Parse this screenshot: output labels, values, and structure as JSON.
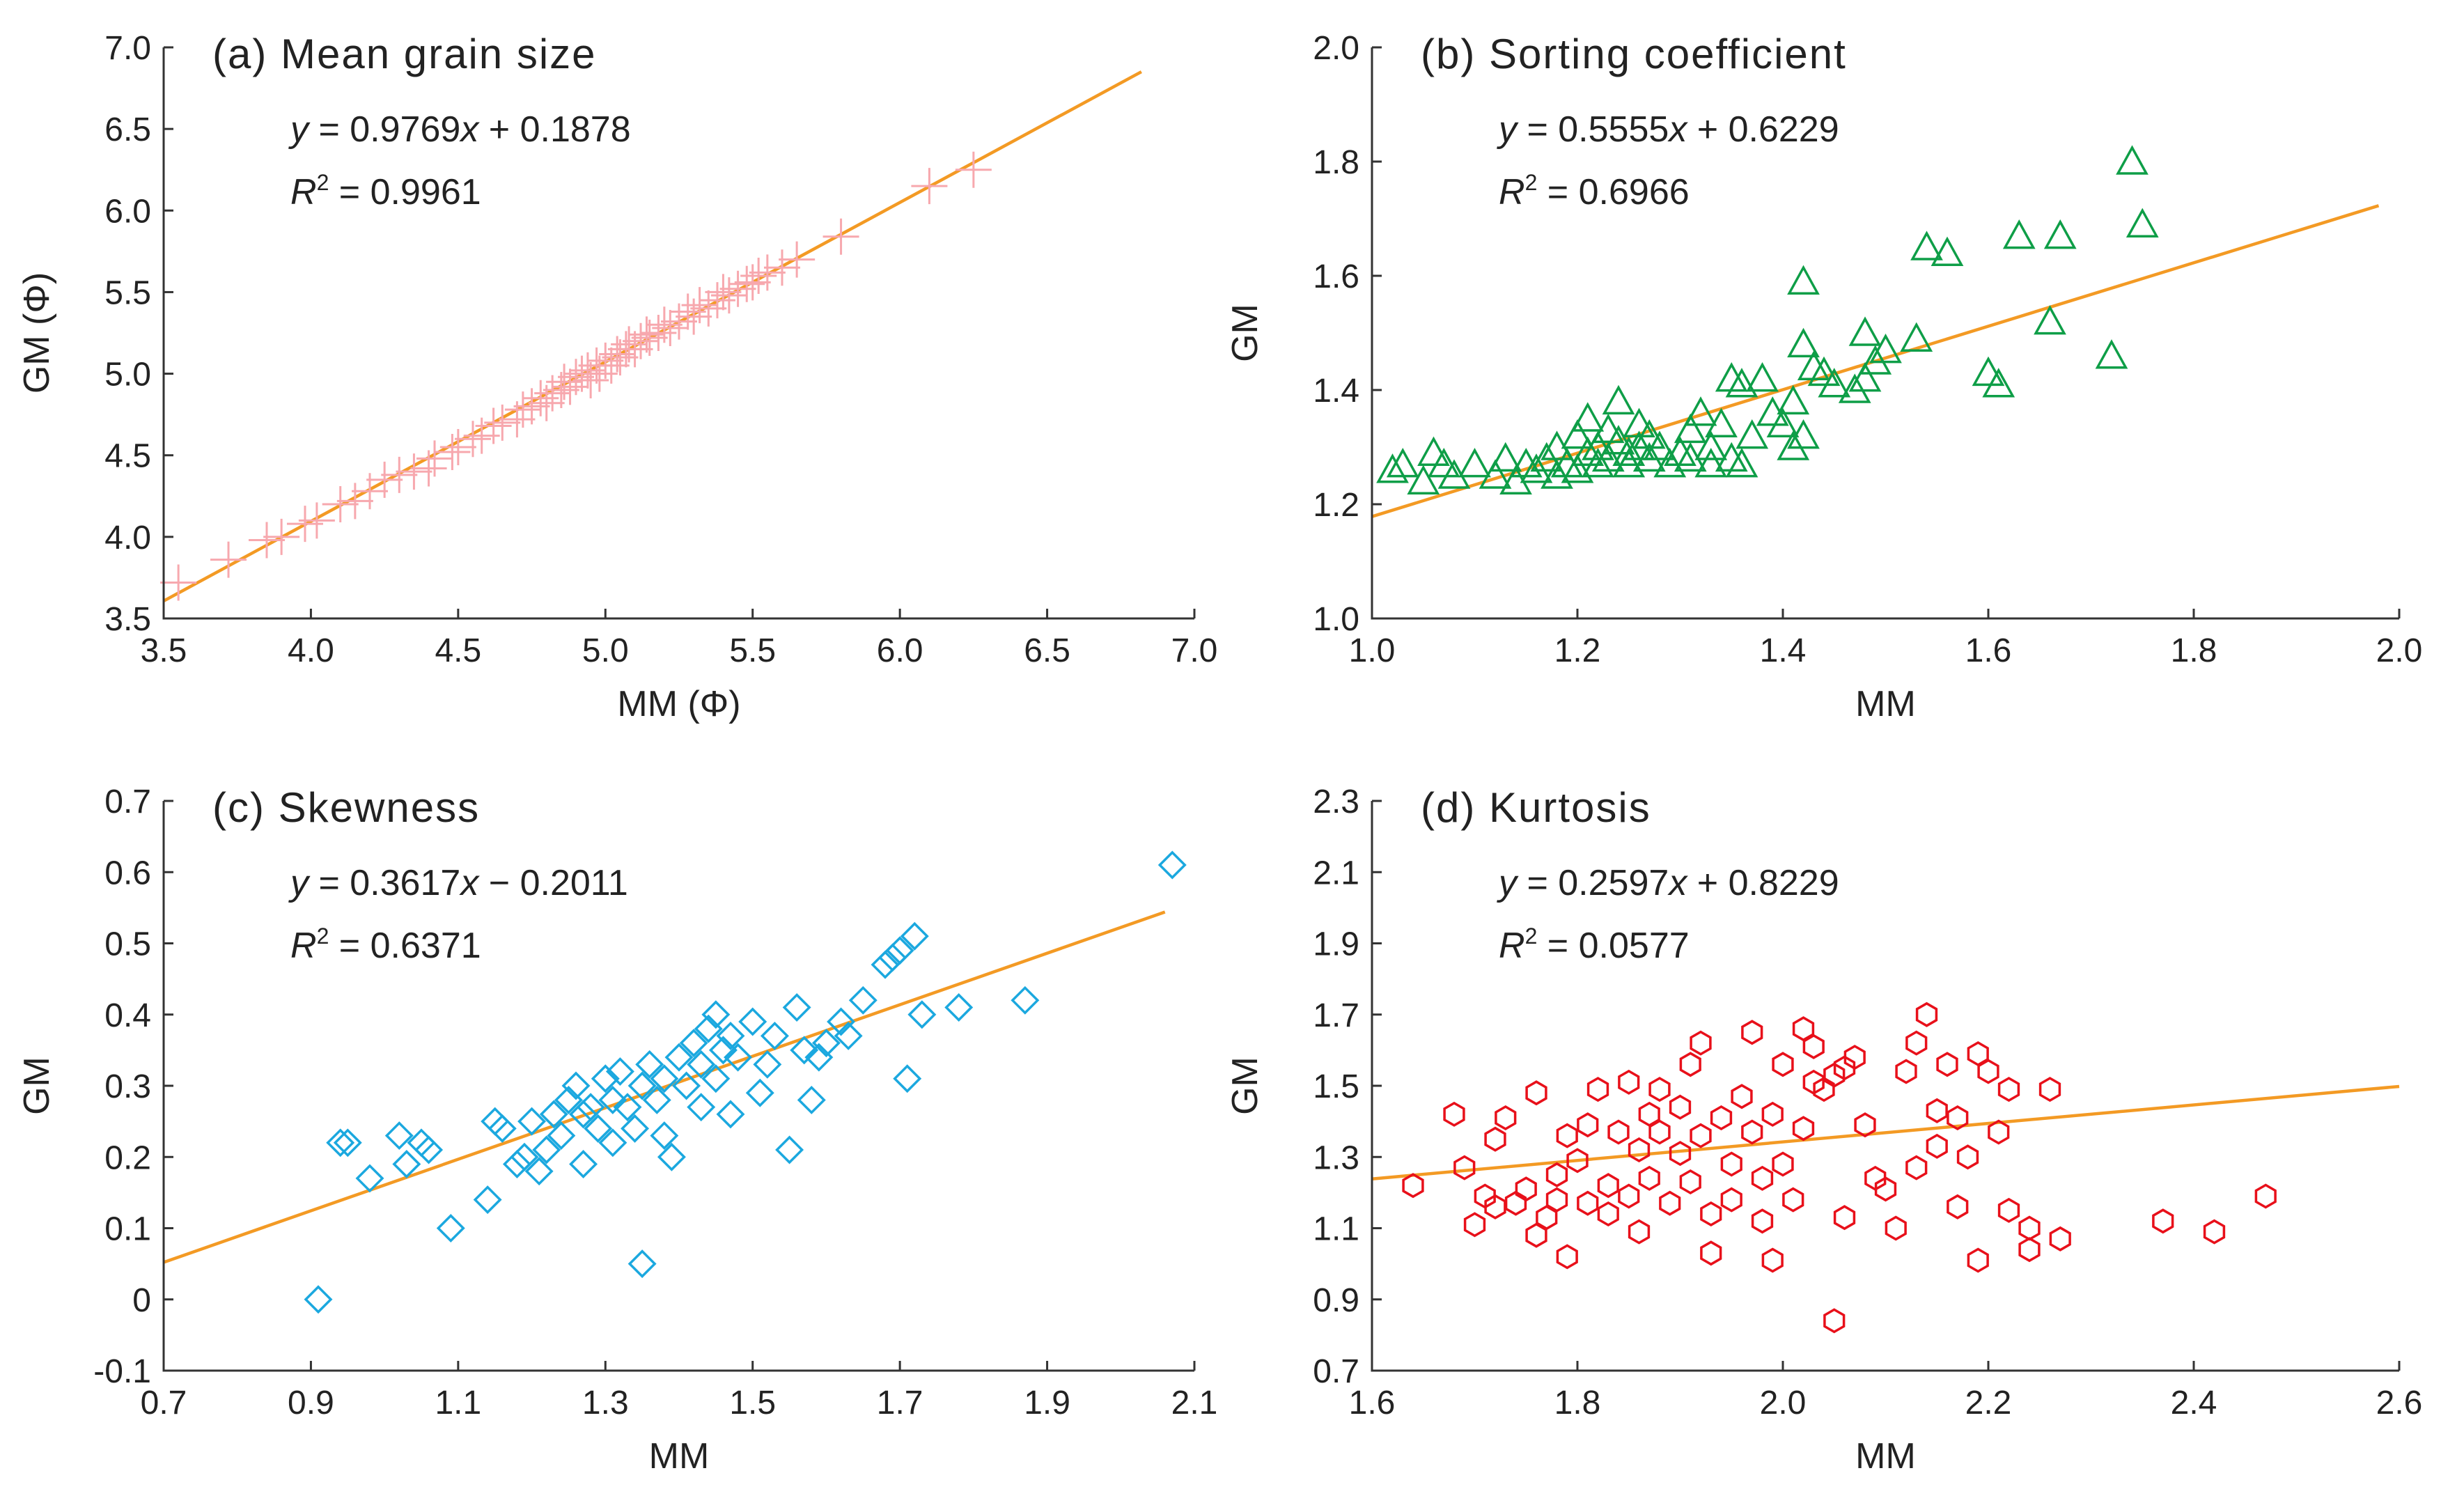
{
  "figure": {
    "panels": [
      "a",
      "b",
      "c",
      "d"
    ]
  },
  "chart_data": [
    {
      "id": "a",
      "type": "scatter",
      "title": "(a) Mean grain size",
      "xlabel": "MM (Φ)",
      "ylabel": "GM (Φ)",
      "xlim": [
        3.5,
        7.0
      ],
      "ylim": [
        3.5,
        7.0
      ],
      "xticks": [
        3.5,
        4.0,
        4.5,
        5.0,
        5.5,
        6.0,
        6.5,
        7.0
      ],
      "yticks": [
        3.5,
        4.0,
        4.5,
        5.0,
        5.5,
        6.0,
        6.5,
        7.0
      ],
      "tick_decimals": 1,
      "marker": "plus",
      "marker_color": "#F7A8AE",
      "equation": {
        "y": "y",
        "eq": " = ",
        "coef": "0.9769",
        "x": "x",
        "rest": " + 0.1878"
      },
      "r2": {
        "r": "R",
        "sup": "2",
        "rest": " = 0.9961"
      },
      "fit": {
        "slope": 0.9769,
        "intercept": 0.1878,
        "x_range": [
          3.5,
          6.82
        ],
        "color": "#F39A24"
      },
      "points": [
        [
          3.55,
          3.72
        ],
        [
          3.72,
          3.86
        ],
        [
          3.85,
          3.98
        ],
        [
          3.9,
          4.0
        ],
        [
          3.98,
          4.08
        ],
        [
          4.02,
          4.1
        ],
        [
          4.1,
          4.2
        ],
        [
          4.15,
          4.22
        ],
        [
          4.2,
          4.28
        ],
        [
          4.25,
          4.35
        ],
        [
          4.3,
          4.38
        ],
        [
          4.35,
          4.4
        ],
        [
          4.4,
          4.42
        ],
        [
          4.42,
          4.48
        ],
        [
          4.48,
          4.52
        ],
        [
          4.5,
          4.55
        ],
        [
          4.55,
          4.6
        ],
        [
          4.58,
          4.62
        ],
        [
          4.62,
          4.68
        ],
        [
          4.65,
          4.7
        ],
        [
          4.7,
          4.72
        ],
        [
          4.72,
          4.78
        ],
        [
          4.75,
          4.8
        ],
        [
          4.78,
          4.85
        ],
        [
          4.8,
          4.82
        ],
        [
          4.82,
          4.88
        ],
        [
          4.85,
          4.9
        ],
        [
          4.86,
          4.95
        ],
        [
          4.88,
          4.92
        ],
        [
          4.9,
          4.98
        ],
        [
          4.92,
          5.0
        ],
        [
          4.94,
          5.02
        ],
        [
          4.95,
          4.96
        ],
        [
          4.97,
          5.05
        ],
        [
          4.98,
          5.0
        ],
        [
          5.0,
          5.08
        ],
        [
          5.02,
          5.05
        ],
        [
          5.04,
          5.12
        ],
        [
          5.05,
          5.1
        ],
        [
          5.07,
          5.15
        ],
        [
          5.08,
          5.18
        ],
        [
          5.1,
          5.15
        ],
        [
          5.12,
          5.2
        ],
        [
          5.14,
          5.24
        ],
        [
          5.15,
          5.22
        ],
        [
          5.18,
          5.25
        ],
        [
          5.2,
          5.3
        ],
        [
          5.22,
          5.28
        ],
        [
          5.25,
          5.32
        ],
        [
          5.28,
          5.38
        ],
        [
          5.3,
          5.35
        ],
        [
          5.32,
          5.42
        ],
        [
          5.35,
          5.4
        ],
        [
          5.38,
          5.45
        ],
        [
          5.4,
          5.5
        ],
        [
          5.42,
          5.48
        ],
        [
          5.45,
          5.52
        ],
        [
          5.48,
          5.55
        ],
        [
          5.5,
          5.56
        ],
        [
          5.52,
          5.6
        ],
        [
          5.55,
          5.62
        ],
        [
          5.6,
          5.65
        ],
        [
          5.65,
          5.7
        ],
        [
          5.8,
          5.84
        ],
        [
          6.1,
          6.15
        ],
        [
          6.25,
          6.25
        ]
      ]
    },
    {
      "id": "b",
      "type": "scatter",
      "title": "(b) Sorting coefficient",
      "xlabel": "MM",
      "ylabel": "GM",
      "xlim": [
        1.0,
        2.0
      ],
      "ylim": [
        1.0,
        2.0
      ],
      "xticks": [
        1.0,
        1.2,
        1.4,
        1.6,
        1.8,
        2.0
      ],
      "yticks": [
        1.0,
        1.2,
        1.4,
        1.6,
        1.8,
        2.0
      ],
      "tick_decimals": 1,
      "marker": "triangle",
      "marker_color": "#0E9E47",
      "equation": {
        "y": "y",
        "eq": " = ",
        "coef": "0.5555",
        "x": "x",
        "rest": " + 0.6229"
      },
      "r2": {
        "r": "R",
        "sup": "2",
        "rest": " = 0.6966"
      },
      "fit": {
        "slope": 0.5555,
        "intercept": 0.6229,
        "x_range": [
          1.0,
          1.98
        ],
        "color": "#F39A24"
      },
      "points": [
        [
          1.02,
          1.26
        ],
        [
          1.03,
          1.27
        ],
        [
          1.05,
          1.24
        ],
        [
          1.06,
          1.29
        ],
        [
          1.07,
          1.27
        ],
        [
          1.08,
          1.25
        ],
        [
          1.1,
          1.27
        ],
        [
          1.12,
          1.25
        ],
        [
          1.13,
          1.28
        ],
        [
          1.14,
          1.24
        ],
        [
          1.15,
          1.27
        ],
        [
          1.16,
          1.26
        ],
        [
          1.17,
          1.28
        ],
        [
          1.18,
          1.3
        ],
        [
          1.18,
          1.25
        ],
        [
          1.19,
          1.27
        ],
        [
          1.2,
          1.32
        ],
        [
          1.2,
          1.26
        ],
        [
          1.21,
          1.29
        ],
        [
          1.21,
          1.35
        ],
        [
          1.22,
          1.3
        ],
        [
          1.22,
          1.27
        ],
        [
          1.23,
          1.33
        ],
        [
          1.23,
          1.28
        ],
        [
          1.24,
          1.38
        ],
        [
          1.24,
          1.31
        ],
        [
          1.25,
          1.29
        ],
        [
          1.25,
          1.27
        ],
        [
          1.26,
          1.34
        ],
        [
          1.26,
          1.3
        ],
        [
          1.27,
          1.28
        ],
        [
          1.27,
          1.32
        ],
        [
          1.28,
          1.3
        ],
        [
          1.29,
          1.27
        ],
        [
          1.3,
          1.29
        ],
        [
          1.31,
          1.33
        ],
        [
          1.31,
          1.28
        ],
        [
          1.32,
          1.36
        ],
        [
          1.33,
          1.3
        ],
        [
          1.33,
          1.27
        ],
        [
          1.34,
          1.34
        ],
        [
          1.35,
          1.42
        ],
        [
          1.35,
          1.28
        ],
        [
          1.36,
          1.41
        ],
        [
          1.36,
          1.27
        ],
        [
          1.37,
          1.32
        ],
        [
          1.38,
          1.42
        ],
        [
          1.39,
          1.36
        ],
        [
          1.4,
          1.34
        ],
        [
          1.41,
          1.38
        ],
        [
          1.41,
          1.3
        ],
        [
          1.42,
          1.48
        ],
        [
          1.42,
          1.32
        ],
        [
          1.42,
          1.59
        ],
        [
          1.43,
          1.44
        ],
        [
          1.44,
          1.43
        ],
        [
          1.45,
          1.41
        ],
        [
          1.47,
          1.4
        ],
        [
          1.48,
          1.5
        ],
        [
          1.48,
          1.42
        ],
        [
          1.49,
          1.45
        ],
        [
          1.5,
          1.47
        ],
        [
          1.53,
          1.49
        ],
        [
          1.54,
          1.65
        ],
        [
          1.56,
          1.64
        ],
        [
          1.6,
          1.43
        ],
        [
          1.61,
          1.41
        ],
        [
          1.63,
          1.67
        ],
        [
          1.66,
          1.52
        ],
        [
          1.67,
          1.67
        ],
        [
          1.72,
          1.46
        ],
        [
          1.74,
          1.8
        ],
        [
          1.75,
          1.69
        ]
      ]
    },
    {
      "id": "c",
      "type": "scatter",
      "title": "(c) Skewness",
      "xlabel": "MM",
      "ylabel": "GM",
      "xlim": [
        0.7,
        2.1
      ],
      "ylim": [
        -0.1,
        0.7
      ],
      "xticks": [
        0.7,
        0.9,
        1.1,
        1.3,
        1.5,
        1.7,
        1.9,
        2.1
      ],
      "yticks": [
        -0.1,
        0,
        0.1,
        0.2,
        0.3,
        0.4,
        0.5,
        0.6,
        0.7
      ],
      "tick_decimals": 1,
      "marker": "diamond",
      "marker_color": "#1BA8DF",
      "equation": {
        "y": "y",
        "eq": " = ",
        "coef": "0.3617",
        "x": "x",
        "rest": " − 0.2011"
      },
      "r2": {
        "r": "R",
        "sup": "2",
        "rest": " = 0.6371"
      },
      "fit": {
        "slope": 0.3617,
        "intercept": -0.2011,
        "x_range": [
          0.7,
          2.06
        ],
        "color": "#F39A24"
      },
      "points": [
        [
          0.91,
          0.0
        ],
        [
          0.94,
          0.22
        ],
        [
          0.95,
          0.22
        ],
        [
          0.98,
          0.17
        ],
        [
          1.02,
          0.23
        ],
        [
          1.03,
          0.19
        ],
        [
          1.05,
          0.22
        ],
        [
          1.06,
          0.21
        ],
        [
          1.09,
          0.1
        ],
        [
          1.14,
          0.14
        ],
        [
          1.15,
          0.25
        ],
        [
          1.16,
          0.24
        ],
        [
          1.18,
          0.19
        ],
        [
          1.19,
          0.2
        ],
        [
          1.2,
          0.25
        ],
        [
          1.21,
          0.18
        ],
        [
          1.22,
          0.21
        ],
        [
          1.23,
          0.26
        ],
        [
          1.24,
          0.23
        ],
        [
          1.25,
          0.28
        ],
        [
          1.26,
          0.3
        ],
        [
          1.27,
          0.19
        ],
        [
          1.27,
          0.26
        ],
        [
          1.28,
          0.27
        ],
        [
          1.29,
          0.24
        ],
        [
          1.3,
          0.31
        ],
        [
          1.31,
          0.22
        ],
        [
          1.31,
          0.28
        ],
        [
          1.32,
          0.32
        ],
        [
          1.33,
          0.27
        ],
        [
          1.34,
          0.24
        ],
        [
          1.35,
          0.05
        ],
        [
          1.35,
          0.3
        ],
        [
          1.36,
          0.33
        ],
        [
          1.37,
          0.28
        ],
        [
          1.38,
          0.23
        ],
        [
          1.38,
          0.31
        ],
        [
          1.39,
          0.2
        ],
        [
          1.4,
          0.34
        ],
        [
          1.41,
          0.3
        ],
        [
          1.42,
          0.36
        ],
        [
          1.43,
          0.27
        ],
        [
          1.43,
          0.33
        ],
        [
          1.44,
          0.38
        ],
        [
          1.45,
          0.31
        ],
        [
          1.45,
          0.4
        ],
        [
          1.46,
          0.35
        ],
        [
          1.47,
          0.26
        ],
        [
          1.47,
          0.37
        ],
        [
          1.48,
          0.34
        ],
        [
          1.5,
          0.39
        ],
        [
          1.51,
          0.29
        ],
        [
          1.52,
          0.33
        ],
        [
          1.53,
          0.37
        ],
        [
          1.55,
          0.21
        ],
        [
          1.56,
          0.41
        ],
        [
          1.57,
          0.35
        ],
        [
          1.58,
          0.28
        ],
        [
          1.59,
          0.34
        ],
        [
          1.6,
          0.36
        ],
        [
          1.62,
          0.39
        ],
        [
          1.63,
          0.37
        ],
        [
          1.65,
          0.42
        ],
        [
          1.68,
          0.47
        ],
        [
          1.69,
          0.48
        ],
        [
          1.7,
          0.49
        ],
        [
          1.71,
          0.31
        ],
        [
          1.72,
          0.51
        ],
        [
          1.73,
          0.4
        ],
        [
          1.78,
          0.41
        ],
        [
          1.87,
          0.42
        ],
        [
          2.07,
          0.61
        ]
      ]
    },
    {
      "id": "d",
      "type": "scatter",
      "title": "(d) Kurtosis",
      "xlabel": "MM",
      "ylabel": "GM",
      "xlim": [
        1.6,
        2.6
      ],
      "ylim": [
        0.7,
        2.3
      ],
      "xticks": [
        1.6,
        1.8,
        2.0,
        2.2,
        2.4,
        2.6
      ],
      "yticks": [
        0.7,
        0.9,
        1.1,
        1.3,
        1.5,
        1.7,
        1.9,
        2.1,
        2.3
      ],
      "tick_decimals": 1,
      "marker": "hexagon",
      "marker_color": "#E8101A",
      "equation": {
        "y": "y",
        "eq": " = ",
        "coef": "0.2597",
        "x": "x",
        "rest": " + 0.8229"
      },
      "r2": {
        "r": "R",
        "sup": "2",
        "rest": " = 0.0577"
      },
      "fit": {
        "slope": 0.2597,
        "intercept": 0.8229,
        "x_range": [
          1.6,
          2.6
        ],
        "color": "#F39A24"
      },
      "points": [
        [
          1.64,
          1.22
        ],
        [
          1.68,
          1.42
        ],
        [
          1.69,
          1.27
        ],
        [
          1.7,
          1.11
        ],
        [
          1.71,
          1.19
        ],
        [
          1.72,
          1.35
        ],
        [
          1.72,
          1.16
        ],
        [
          1.73,
          1.41
        ],
        [
          1.74,
          1.17
        ],
        [
          1.75,
          1.21
        ],
        [
          1.76,
          1.48
        ],
        [
          1.76,
          1.08
        ],
        [
          1.77,
          1.13
        ],
        [
          1.78,
          1.25
        ],
        [
          1.78,
          1.18
        ],
        [
          1.79,
          1.36
        ],
        [
          1.79,
          1.02
        ],
        [
          1.8,
          1.29
        ],
        [
          1.81,
          1.17
        ],
        [
          1.81,
          1.39
        ],
        [
          1.82,
          1.49
        ],
        [
          1.83,
          1.22
        ],
        [
          1.83,
          1.14
        ],
        [
          1.84,
          1.37
        ],
        [
          1.85,
          1.51
        ],
        [
          1.85,
          1.19
        ],
        [
          1.86,
          1.32
        ],
        [
          1.86,
          1.09
        ],
        [
          1.87,
          1.42
        ],
        [
          1.87,
          1.24
        ],
        [
          1.88,
          1.37
        ],
        [
          1.88,
          1.49
        ],
        [
          1.89,
          1.17
        ],
        [
          1.9,
          1.31
        ],
        [
          1.9,
          1.44
        ],
        [
          1.91,
          1.56
        ],
        [
          1.91,
          1.23
        ],
        [
          1.92,
          1.62
        ],
        [
          1.92,
          1.36
        ],
        [
          1.93,
          1.14
        ],
        [
          1.93,
          1.03
        ],
        [
          1.94,
          1.41
        ],
        [
          1.95,
          1.28
        ],
        [
          1.95,
          1.18
        ],
        [
          1.96,
          1.47
        ],
        [
          1.97,
          1.65
        ],
        [
          1.97,
          1.37
        ],
        [
          1.98,
          1.24
        ],
        [
          1.98,
          1.12
        ],
        [
          1.99,
          1.01
        ],
        [
          1.99,
          1.42
        ],
        [
          2.0,
          1.56
        ],
        [
          2.0,
          1.28
        ],
        [
          2.01,
          1.18
        ],
        [
          2.02,
          1.66
        ],
        [
          2.02,
          1.38
        ],
        [
          2.03,
          1.61
        ],
        [
          2.03,
          1.51
        ],
        [
          2.04,
          1.49
        ],
        [
          2.05,
          1.53
        ],
        [
          2.05,
          0.84
        ],
        [
          2.06,
          1.55
        ],
        [
          2.06,
          1.13
        ],
        [
          2.07,
          1.58
        ],
        [
          2.08,
          1.39
        ],
        [
          2.09,
          1.24
        ],
        [
          2.1,
          1.21
        ],
        [
          2.11,
          1.1
        ],
        [
          2.12,
          1.54
        ],
        [
          2.13,
          1.27
        ],
        [
          2.13,
          1.62
        ],
        [
          2.14,
          1.7
        ],
        [
          2.15,
          1.43
        ],
        [
          2.15,
          1.33
        ],
        [
          2.16,
          1.56
        ],
        [
          2.17,
          1.16
        ],
        [
          2.17,
          1.41
        ],
        [
          2.18,
          1.3
        ],
        [
          2.19,
          1.59
        ],
        [
          2.19,
          1.01
        ],
        [
          2.2,
          1.54
        ],
        [
          2.21,
          1.37
        ],
        [
          2.22,
          1.15
        ],
        [
          2.22,
          1.49
        ],
        [
          2.24,
          1.1
        ],
        [
          2.24,
          1.04
        ],
        [
          2.26,
          1.49
        ],
        [
          2.27,
          1.07
        ],
        [
          2.37,
          1.12
        ],
        [
          2.42,
          1.09
        ],
        [
          2.47,
          1.19
        ]
      ]
    }
  ]
}
